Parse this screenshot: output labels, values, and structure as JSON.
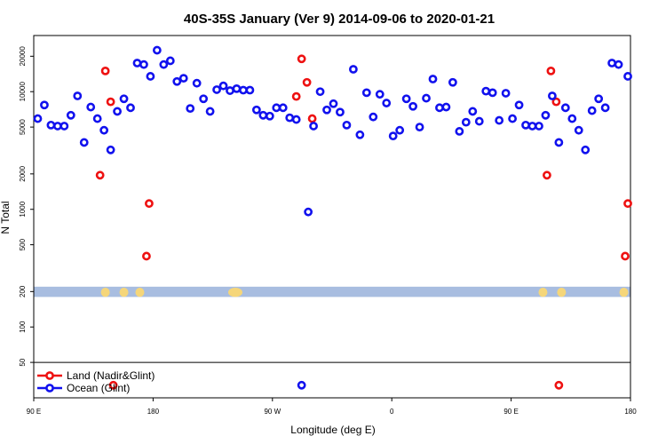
{
  "chart_data": {
    "type": "scatter",
    "title": "40S-35S January (Ver 9)   2014-09-06 to 2020-01-21",
    "xlabel": "Longitude (deg E)",
    "ylabel": "N Total",
    "x_ticks": [
      {
        "value": 90,
        "label": "90 E"
      },
      {
        "value": 180,
        "label": "180"
      },
      {
        "value": 270,
        "label": "90 W"
      },
      {
        "value": 360,
        "label": "0"
      },
      {
        "value": 450,
        "label": "90 E"
      },
      {
        "value": 540,
        "label": "180"
      }
    ],
    "y_ticks": [
      {
        "value": 50,
        "label": "50"
      },
      {
        "value": 100,
        "label": "100"
      },
      {
        "value": 200,
        "label": "200"
      },
      {
        "value": 500,
        "label": "500"
      },
      {
        "value": 1000,
        "label": "1000"
      },
      {
        "value": 2000,
        "label": "2000"
      },
      {
        "value": 5000,
        "label": "5000"
      },
      {
        "value": 10000,
        "label": "10000"
      },
      {
        "value": 20000,
        "label": "20000"
      }
    ],
    "xlim": [
      90,
      540
    ],
    "ylim": [
      25,
      30000
    ],
    "yscale": "log",
    "legend_position": "bottom-left",
    "map_band": {
      "y_low": 180,
      "y_high": 220,
      "ocean_color": "#a8bde0",
      "land_color": "#f5d67a"
    },
    "land_centers": [
      144,
      158,
      170,
      242,
      474,
      488,
      535
    ],
    "series": [
      {
        "name": "Land (Nadir&Glint)",
        "color": "#ee1111",
        "points": [
          [
            140,
            1950
          ],
          [
            144,
            15000
          ],
          [
            148,
            8200
          ],
          [
            150,
            32
          ],
          [
            175,
            400
          ],
          [
            177,
            1120
          ],
          [
            288,
            9100
          ],
          [
            292,
            19000
          ],
          [
            296,
            12000
          ],
          [
            300,
            5900
          ],
          [
            477,
            1950
          ],
          [
            480,
            15000
          ],
          [
            484,
            8200
          ],
          [
            486,
            32
          ],
          [
            536,
            400
          ],
          [
            538,
            1120
          ]
        ]
      },
      {
        "name": "Ocean (Glint)",
        "color": "#1111ee",
        "points": [
          [
            93,
            5900
          ],
          [
            98,
            7700
          ],
          [
            103,
            5200
          ],
          [
            108,
            5100
          ],
          [
            113,
            5100
          ],
          [
            118,
            6300
          ],
          [
            123,
            9200
          ],
          [
            128,
            3700
          ],
          [
            133,
            7400
          ],
          [
            138,
            5900
          ],
          [
            143,
            4700
          ],
          [
            148,
            3200
          ],
          [
            153,
            6800
          ],
          [
            158,
            8700
          ],
          [
            163,
            7300
          ],
          [
            168,
            17500
          ],
          [
            173,
            17000
          ],
          [
            178,
            13500
          ],
          [
            183,
            22500
          ],
          [
            188,
            17000
          ],
          [
            193,
            18300
          ],
          [
            198,
            12200
          ],
          [
            203,
            13000
          ],
          [
            208,
            7200
          ],
          [
            213,
            11800
          ],
          [
            218,
            8700
          ],
          [
            223,
            6800
          ],
          [
            228,
            10400
          ],
          [
            233,
            11200
          ],
          [
            238,
            10200
          ],
          [
            243,
            10600
          ],
          [
            248,
            10300
          ],
          [
            253,
            10300
          ],
          [
            258,
            7000
          ],
          [
            263,
            6300
          ],
          [
            268,
            6200
          ],
          [
            273,
            7300
          ],
          [
            278,
            7300
          ],
          [
            283,
            6000
          ],
          [
            288,
            5800
          ],
          [
            292,
            32
          ],
          [
            297,
            950
          ],
          [
            301,
            5100
          ],
          [
            306,
            10000
          ],
          [
            311,
            7000
          ],
          [
            316,
            7900
          ],
          [
            321,
            6700
          ],
          [
            326,
            5200
          ],
          [
            331,
            15500
          ],
          [
            336,
            4300
          ],
          [
            341,
            9800
          ],
          [
            346,
            6100
          ],
          [
            351,
            9500
          ],
          [
            356,
            8000
          ],
          [
            361,
            4200
          ],
          [
            366,
            4700
          ],
          [
            371,
            8700
          ],
          [
            376,
            7500
          ],
          [
            381,
            5000
          ],
          [
            386,
            8800
          ],
          [
            391,
            12800
          ],
          [
            396,
            7300
          ],
          [
            401,
            7400
          ],
          [
            406,
            12000
          ],
          [
            411,
            4600
          ],
          [
            416,
            5500
          ],
          [
            421,
            6800
          ],
          [
            426,
            5600
          ],
          [
            431,
            10100
          ],
          [
            436,
            9800
          ],
          [
            441,
            5700
          ],
          [
            446,
            9700
          ],
          [
            451,
            5900
          ],
          [
            456,
            7700
          ],
          [
            461,
            5200
          ],
          [
            466,
            5100
          ],
          [
            471,
            5100
          ],
          [
            476,
            6300
          ],
          [
            481,
            9200
          ],
          [
            486,
            3700
          ],
          [
            491,
            7300
          ],
          [
            496,
            5900
          ],
          [
            501,
            4700
          ],
          [
            506,
            3200
          ],
          [
            511,
            6900
          ],
          [
            516,
            8700
          ],
          [
            521,
            7300
          ],
          [
            526,
            17500
          ],
          [
            531,
            17000
          ],
          [
            538,
            13500
          ]
        ]
      }
    ]
  }
}
